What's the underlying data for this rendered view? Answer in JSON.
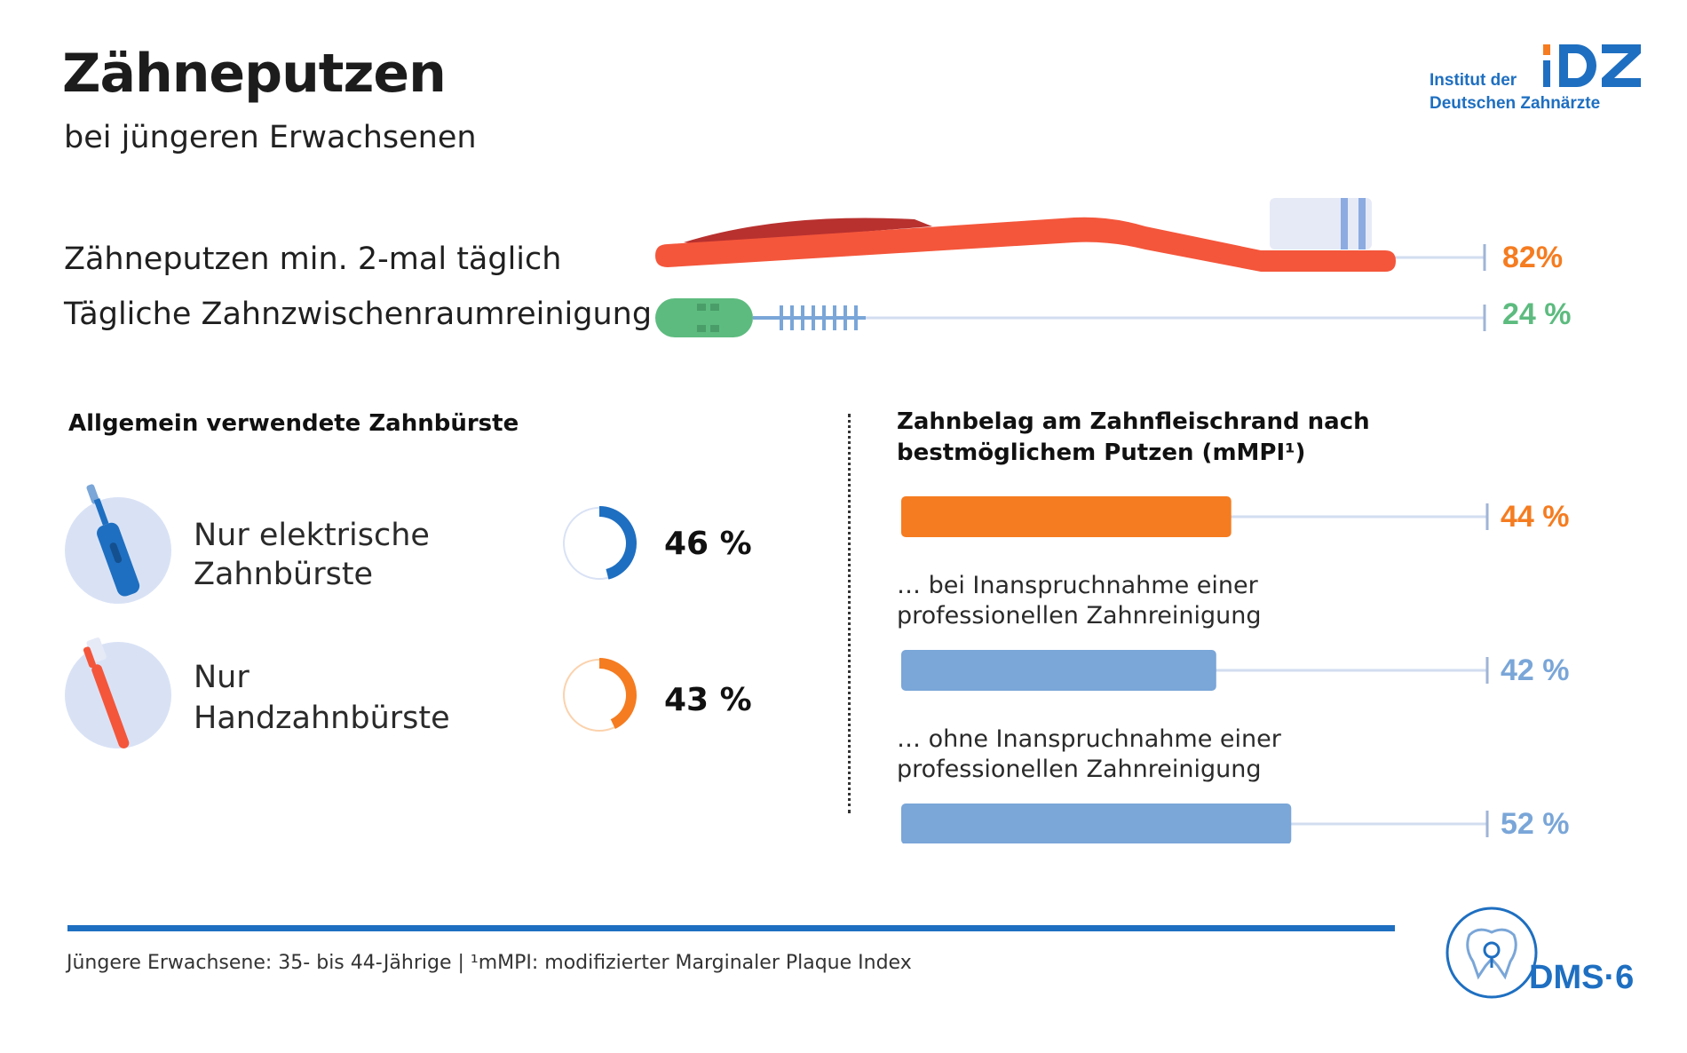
{
  "header": {
    "title": "Zähneputzen",
    "subtitle": "bei jüngeren Erwachsenen"
  },
  "logo": {
    "line1": "Institut der",
    "line2": "Deutschen Zahnärzte",
    "mark": "IDZ"
  },
  "top_rows": [
    {
      "label": "Zähneputzen min. 2-mal täglich",
      "value_text": "82%",
      "color": "#f57c20",
      "icon": "toothbrush-icon"
    },
    {
      "label": "Tägliche Zahnzwischenraumreinigung",
      "value_text": "24 %",
      "color": "#5dbb7f",
      "icon": "interdental-brush-icon"
    }
  ],
  "left_section": {
    "heading": "Allgemein verwendete Zahnbürste",
    "items": [
      {
        "label_line1": "Nur elektrische",
        "label_line2": "Zahnbürste",
        "value_text": "46 %",
        "color": "#1e6fc1",
        "icon": "electric-toothbrush-icon"
      },
      {
        "label_line1": "Nur",
        "label_line2": "Handzahnbürste",
        "value_text": "43 %",
        "color": "#f57c20",
        "icon": "manual-toothbrush-icon"
      }
    ]
  },
  "right_section": {
    "heading_line1": "Zahnbelag am Zahnfleischrand nach",
    "heading_line2": "bestmöglichem Putzen (mMPI¹)",
    "bars": [
      {
        "label_line1": "",
        "label_line2": "",
        "value_text": "44 %",
        "color": "#f57c20"
      },
      {
        "label_line1": "… bei Inanspruchnahme einer",
        "label_line2": "professionellen Zahnreinigung",
        "value_text": "42 %",
        "color": "#7aa6d8"
      },
      {
        "label_line1": "… ohne Inanspruchnahme einer",
        "label_line2": "professionellen Zahnreinigung",
        "value_text": "52 %",
        "color": "#7aa6d8"
      }
    ]
  },
  "footer": {
    "note": "Jüngere Erwachsene: 35- bis 44-Jährige | ¹mMPI: modifizierter Marginaler Plaque Index",
    "badge": "DMS·6"
  },
  "chart_data": [
    {
      "type": "bar",
      "categories": [
        "Zähneputzen min. 2-mal täglich",
        "Tägliche Zahnzwischenraumreinigung"
      ],
      "values": [
        82,
        24
      ],
      "ylim": [
        0,
        100
      ],
      "unit": "%"
    },
    {
      "type": "pie",
      "title": "Allgemein verwendete Zahnbürste",
      "categories": [
        "Nur elektrische Zahnbürste",
        "Nur Handzahnbürste"
      ],
      "values": [
        46,
        43
      ],
      "unit": "%"
    },
    {
      "type": "bar",
      "title": "Zahnbelag am Zahnfleischrand nach bestmöglichem Putzen (mMPI¹)",
      "categories": [
        "",
        "… bei Inanspruchnahme einer professionellen Zahnreinigung",
        "… ohne Inanspruchnahme einer professionellen Zahnreinigung"
      ],
      "values": [
        44,
        42,
        52
      ],
      "ylim": [
        0,
        100
      ],
      "unit": "%"
    }
  ]
}
